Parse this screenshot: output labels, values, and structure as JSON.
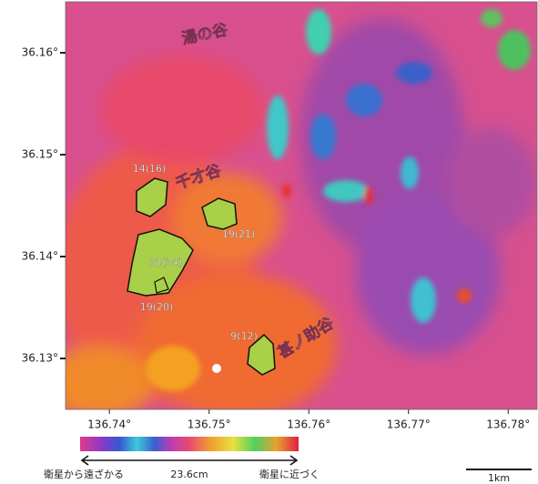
{
  "map": {
    "xlim": [
      136.7356,
      136.7829
    ],
    "ylim": [
      36.125,
      36.165
    ],
    "xticks": [
      {
        "value": 136.74,
        "label": "136.74°"
      },
      {
        "value": 136.75,
        "label": "136.75°"
      },
      {
        "value": 136.76,
        "label": "136.76°"
      },
      {
        "value": 136.77,
        "label": "136.77°"
      },
      {
        "value": 136.78,
        "label": "136.78°"
      }
    ],
    "yticks": [
      {
        "value": 36.16,
        "label": "36.16°"
      },
      {
        "value": 36.15,
        "label": "36.15°"
      },
      {
        "value": 36.14,
        "label": "36.14°"
      },
      {
        "value": 36.13,
        "label": "36.13°"
      }
    ],
    "places": [
      "湯の谷",
      "千才谷",
      "甚ノ助谷"
    ],
    "annotations": [
      "14(16)",
      "19(21)",
      "32(34)",
      "19(20)",
      "9(12)"
    ],
    "colorbar": {
      "left_label": "衛星から遠ざかる",
      "center_label": "23.6cm",
      "right_label": "衛星に近づく"
    },
    "scale_bar": "1km"
  }
}
